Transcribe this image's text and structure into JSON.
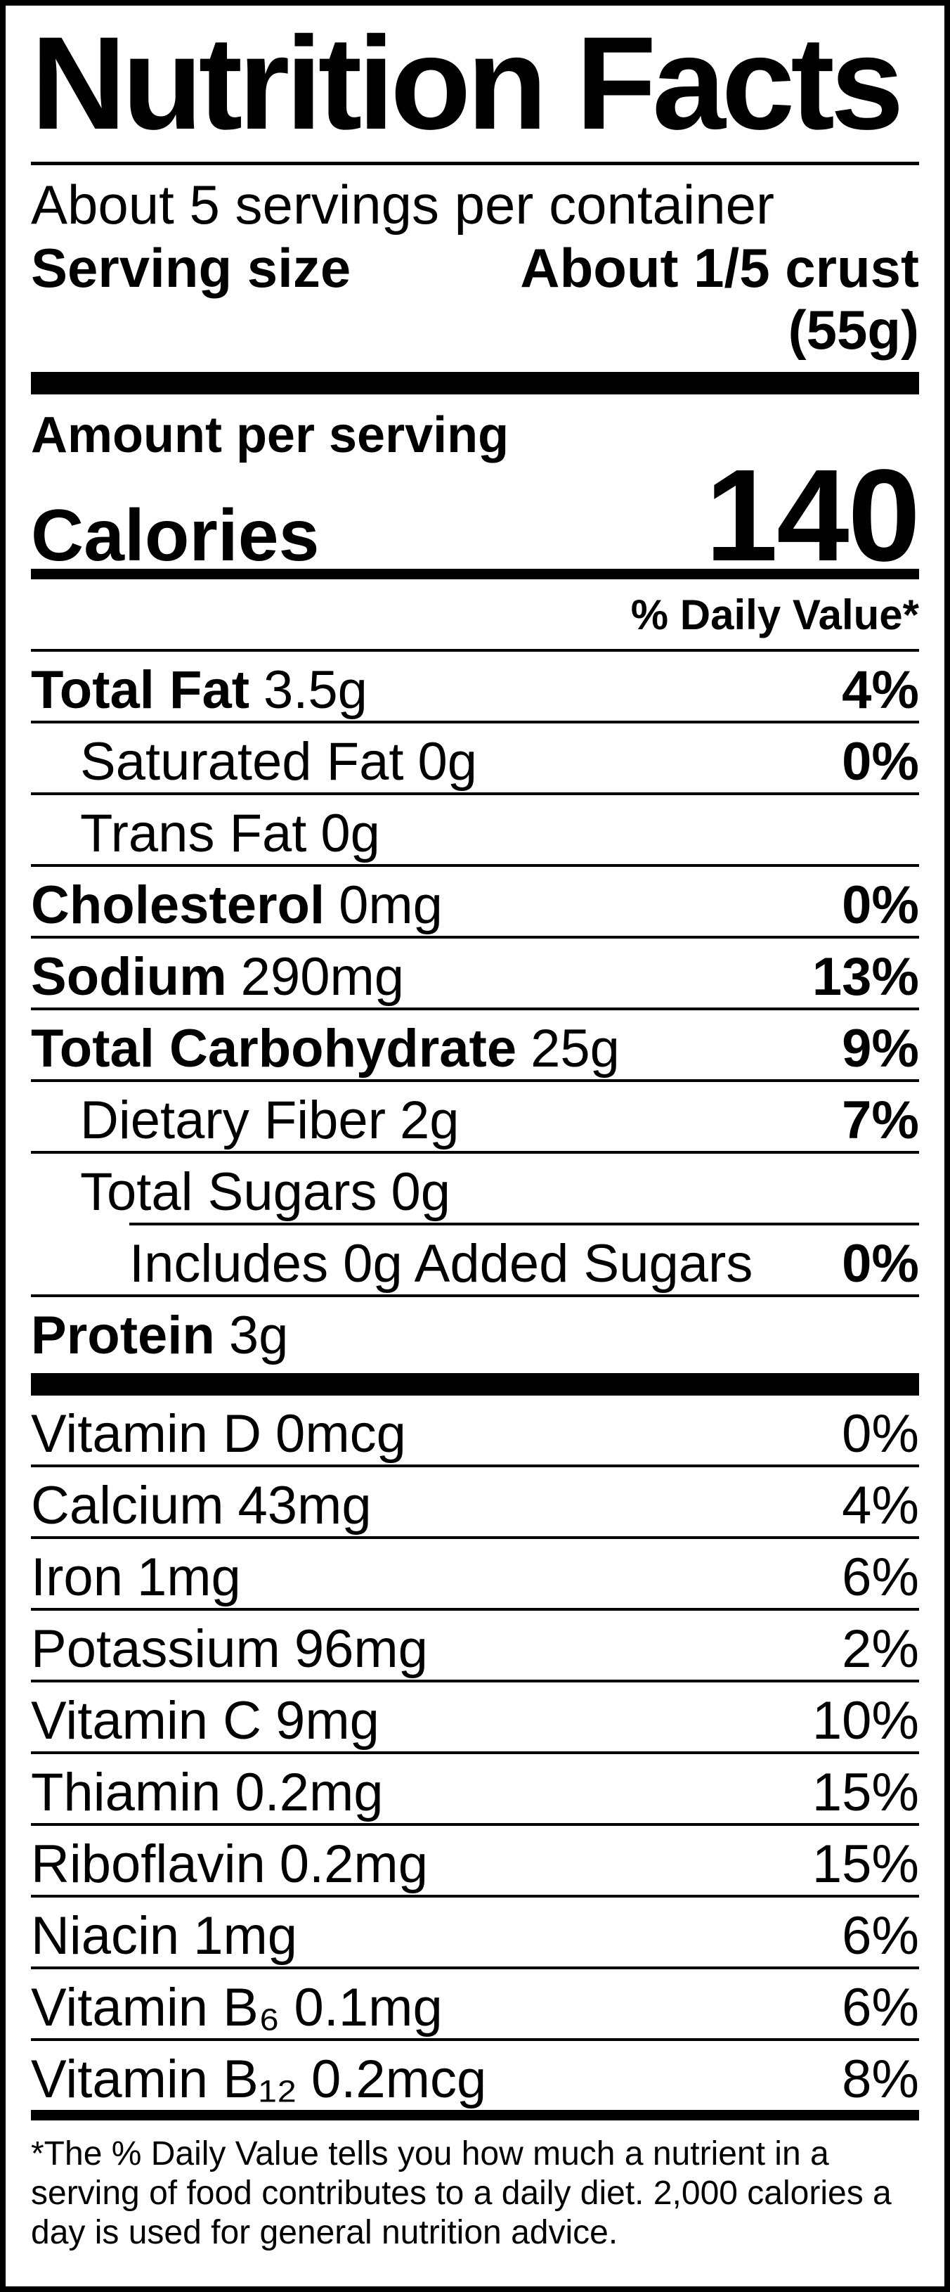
{
  "label": {
    "title": "Nutrition Facts",
    "servings_per_container": "About 5 servings per container",
    "serving_size": {
      "label": "Serving size",
      "value": "About 1/5 crust (55g)"
    },
    "amount_per_serving": "Amount per serving",
    "calories": {
      "label": "Calories",
      "value": "140"
    },
    "daily_value_header": "% Daily Value*",
    "nutrients": [
      {
        "name": "Total Fat",
        "amount": "3.5g",
        "daily_value": "4%"
      },
      {
        "name": "Saturated Fat",
        "amount": "0g",
        "daily_value": "0%"
      },
      {
        "name": "Trans Fat",
        "amount": "0g",
        "daily_value": ""
      },
      {
        "name": "Cholesterol",
        "amount": "0mg",
        "daily_value": "0%"
      },
      {
        "name": "Sodium",
        "amount": "290mg",
        "daily_value": "13%"
      },
      {
        "name": "Total Carbohydrate",
        "amount": "25g",
        "daily_value": "9%"
      },
      {
        "name": "Dietary Fiber",
        "amount": "2g",
        "daily_value": "7%"
      },
      {
        "name": "Total Sugars",
        "amount": "0g",
        "daily_value": ""
      },
      {
        "name": "Includes 0g Added Sugars",
        "amount": "",
        "daily_value": "0%"
      },
      {
        "name": "Protein",
        "amount": "3g",
        "daily_value": ""
      }
    ],
    "micronutrients": [
      {
        "name": "Vitamin D",
        "amount": "0mcg",
        "daily_value": "0%"
      },
      {
        "name": "Calcium",
        "amount": "43mg",
        "daily_value": "4%"
      },
      {
        "name": "Iron",
        "amount": "1mg",
        "daily_value": "6%"
      },
      {
        "name": "Potassium",
        "amount": "96mg",
        "daily_value": "2%"
      },
      {
        "name": "Vitamin C",
        "amount": "9mg",
        "daily_value": "10%"
      },
      {
        "name": "Thiamin",
        "amount": "0.2mg",
        "daily_value": "15%"
      },
      {
        "name": "Riboflavin",
        "amount": "0.2mg",
        "daily_value": "15%"
      },
      {
        "name": "Niacin",
        "amount": "1mg",
        "daily_value": "6%"
      },
      {
        "name": "Vitamin B₆",
        "amount": "0.1mg",
        "daily_value": "6%"
      },
      {
        "name": "Vitamin B₁₂",
        "amount": "0.2mcg",
        "daily_value": "8%"
      }
    ],
    "footnote": "*The % Daily Value tells you how much a nutrient in a serving of food contributes to a daily diet. 2,000 calories a day is used for general nutrition advice.",
    "colors": {
      "ink": "#000000",
      "background": "#ffffff"
    }
  }
}
